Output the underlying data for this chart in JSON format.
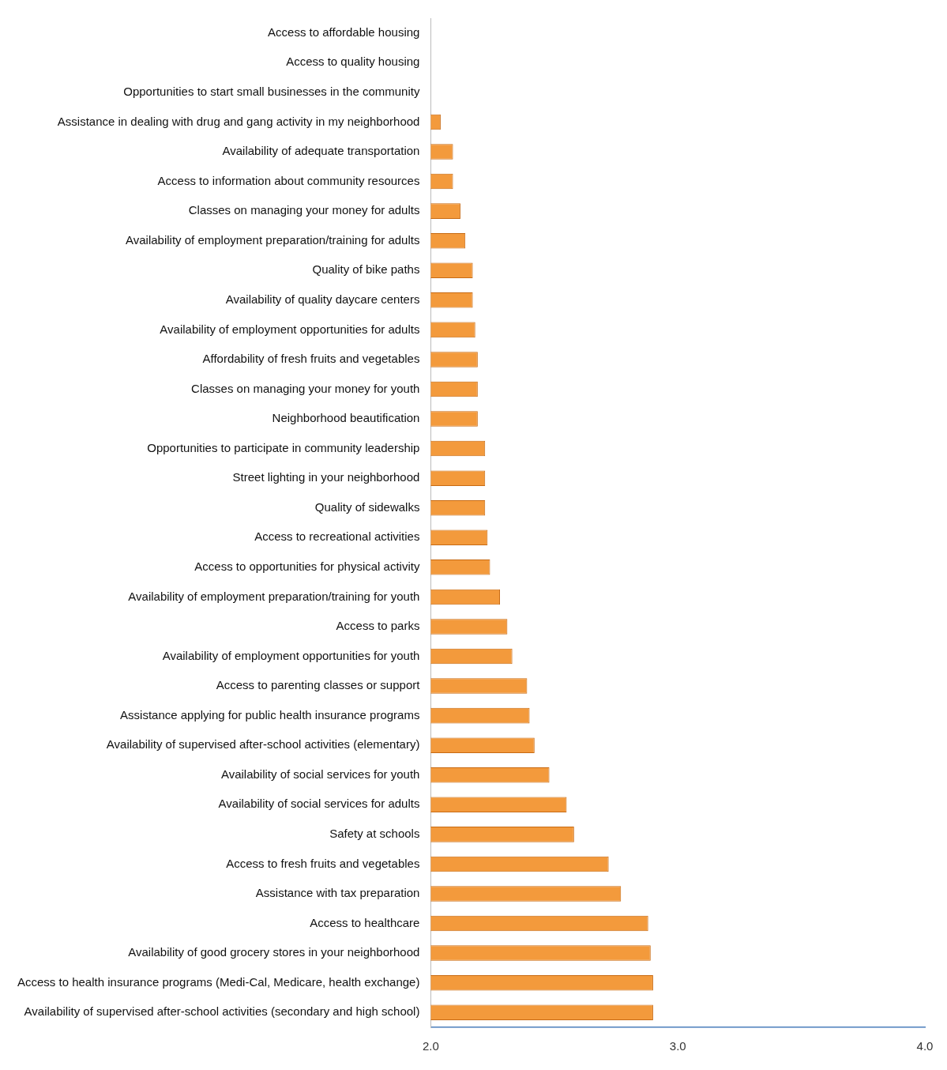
{
  "chart_data": {
    "type": "bar",
    "orientation": "horizontal",
    "categories": [
      "Access to affordable housing",
      "Access to quality housing",
      "Opportunities to start small businesses in the community",
      "Assistance in dealing with drug and gang activity in my neighborhood",
      "Availability of adequate transportation",
      "Access to information about community resources",
      "Classes on managing your money for adults",
      "Availability of employment preparation/training for adults",
      "Quality of bike paths",
      "Availability of quality daycare centers",
      "Availability of employment opportunities for adults",
      "Affordability of fresh fruits and vegetables",
      "Classes on managing your money for youth",
      "Neighborhood beautification",
      "Opportunities to participate in community leadership",
      "Street lighting in your neighborhood",
      "Quality of sidewalks",
      "Access to recreational activities",
      "Access to opportunities for physical activity",
      "Availability of employment preparation/training for youth",
      "Access to parks",
      "Availability of employment opportunities for youth",
      "Access to parenting classes or support",
      "Assistance applying for public health insurance programs",
      "Availability of supervised after-school activities (elementary)",
      "Availability of social services for youth",
      "Availability of social services for adults",
      "Safety at schools",
      "Access to fresh fruits and vegetables",
      "Assistance with tax preparation",
      "Access to healthcare",
      "Availability of good grocery stores in your neighborhood",
      "Access to health insurance programs (Medi-Cal, Medicare, health exchange)",
      "Availability of supervised after-school activities (secondary and high school)"
    ],
    "values": [
      null,
      null,
      null,
      2.04,
      2.09,
      2.09,
      2.12,
      2.14,
      2.17,
      2.17,
      2.18,
      2.19,
      2.19,
      2.19,
      2.22,
      2.22,
      2.22,
      2.23,
      2.24,
      2.28,
      2.31,
      2.33,
      2.39,
      2.4,
      2.42,
      2.48,
      2.55,
      2.58,
      2.72,
      2.77,
      2.88,
      2.89,
      2.9,
      2.9
    ],
    "color": "#f39a3c",
    "xlim": [
      2,
      4
    ],
    "xticks": [
      {
        "value": 2,
        "label": "2.0"
      },
      {
        "value": 3,
        "label": "3.0"
      },
      {
        "value": 4,
        "label": "4.0"
      }
    ],
    "grid": false,
    "legend": false
  }
}
